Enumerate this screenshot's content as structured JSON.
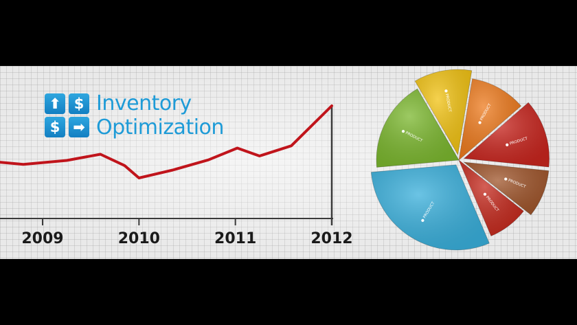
{
  "title": {
    "line1": "Inventory",
    "line2": "Optimization"
  },
  "icons": {
    "up_arrow": "up-arrow-icon",
    "dollar": "dollar-icon",
    "right_arrow": "right-arrow-icon",
    "glyph_up": "⬆",
    "glyph_dollar": "$",
    "glyph_right": "➡",
    "accent": "#1e9bd7"
  },
  "chart_data": [
    {
      "type": "line",
      "x_ticks": [
        "2009",
        "2010",
        "2011",
        "2012"
      ],
      "series": [
        {
          "color": "#c0141b",
          "points": [
            {
              "x": 2008.55,
              "y": 50
            },
            {
              "x": 2008.8,
              "y": 46
            },
            {
              "x": 2009.25,
              "y": 53
            },
            {
              "x": 2009.6,
              "y": 64
            },
            {
              "x": 2009.85,
              "y": 44
            },
            {
              "x": 2010.0,
              "y": 22
            },
            {
              "x": 2010.35,
              "y": 36
            },
            {
              "x": 2010.72,
              "y": 54
            },
            {
              "x": 2011.02,
              "y": 75
            },
            {
              "x": 2011.25,
              "y": 61
            },
            {
              "x": 2011.58,
              "y": 79
            },
            {
              "x": 2012.0,
              "y": 150
            }
          ]
        }
      ],
      "xlim": [
        2008.55,
        2012.6
      ],
      "ylim": [
        -50,
        150
      ],
      "grid": true
    },
    {
      "type": "pie",
      "slices": [
        {
          "label": "PRODUCT",
          "value": 18,
          "color": "#7cb82f",
          "exploded": false
        },
        {
          "label": "PRODUCT",
          "value": 11,
          "color": "#f2c314",
          "exploded": true
        },
        {
          "label": "PRODUCT",
          "value": 11,
          "color": "#ee7b1e",
          "exploded": false
        },
        {
          "label": "PRODUCT",
          "value": 13,
          "color": "#c9261f",
          "exploded": true
        },
        {
          "label": "PRODUCT",
          "value": 9,
          "color": "#a0562c",
          "exploded": true
        },
        {
          "label": "PRODUCT",
          "value": 8,
          "color": "#c52a1e",
          "exploded": false
        },
        {
          "label": "PRODUCT",
          "value": 30,
          "color": "#3ab0dc",
          "exploded": true
        }
      ]
    }
  ]
}
